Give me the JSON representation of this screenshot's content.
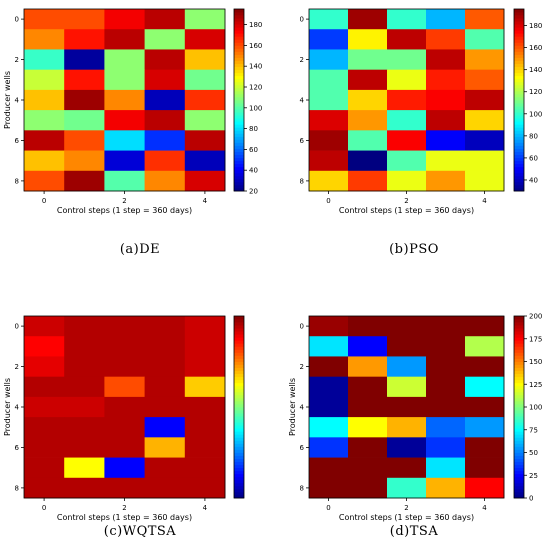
{
  "chart_data": [
    {
      "type": "heatmap",
      "caption": "(a)DE",
      "xlabel": "Control steps (1 step = 360 days)",
      "ylabel": "Producer wells",
      "x_ticks": [
        "0",
        "2",
        "4"
      ],
      "y_ticks": [
        "0",
        "2",
        "4",
        "6",
        "8"
      ],
      "colorbar_ticks": [
        "20",
        "40",
        "60",
        "80",
        "100",
        "120",
        "140",
        "160",
        "180"
      ],
      "zlim": [
        20,
        195
      ],
      "values": [
        [
          160,
          160,
          175,
          185,
          110
        ],
        [
          150,
          170,
          185,
          110,
          180
        ],
        [
          95,
          25,
          110,
          185,
          140
        ],
        [
          120,
          170,
          110,
          180,
          105
        ],
        [
          140,
          190,
          150,
          30,
          165
        ],
        [
          110,
          105,
          175,
          185,
          110
        ],
        [
          185,
          160,
          80,
          50,
          185
        ],
        [
          140,
          150,
          35,
          165,
          30
        ],
        [
          160,
          190,
          100,
          150,
          180
        ]
      ]
    },
    {
      "type": "heatmap",
      "caption": "(b)PSO",
      "xlabel": "Control steps (1 step = 360 days)",
      "ylabel": "",
      "x_ticks": [
        "0",
        "2",
        "4"
      ],
      "y_ticks": [
        "0",
        "2",
        "4",
        "6",
        "8"
      ],
      "colorbar_ticks": [
        "40",
        "60",
        "80",
        "100",
        "120",
        "140",
        "160",
        "180"
      ],
      "zlim": [
        30,
        195
      ],
      "values": [
        [
          100,
          190,
          100,
          80,
          160
        ],
        [
          60,
          135,
          185,
          165,
          105
        ],
        [
          80,
          110,
          110,
          185,
          150
        ],
        [
          105,
          185,
          130,
          170,
          160
        ],
        [
          105,
          140,
          170,
          175,
          185
        ],
        [
          180,
          150,
          100,
          185,
          140
        ],
        [
          190,
          105,
          175,
          50,
          40
        ],
        [
          185,
          30,
          105,
          130,
          130
        ],
        [
          140,
          165,
          130,
          150,
          130
        ]
      ]
    },
    {
      "type": "heatmap",
      "caption": "(c)WQTSA",
      "xlabel": "Control steps (1 step = 360 days)",
      "ylabel": "Producer wells",
      "x_ticks": [
        "0",
        "2",
        "4"
      ],
      "y_ticks": [
        "0",
        "2",
        "4",
        "6",
        "8"
      ],
      "colorbar_ticks": [],
      "zlim": [
        0,
        200
      ],
      "values": [
        [
          185,
          190,
          190,
          190,
          185
        ],
        [
          175,
          190,
          190,
          190,
          185
        ],
        [
          180,
          190,
          190,
          190,
          185
        ],
        [
          190,
          190,
          160,
          190,
          135
        ],
        [
          185,
          185,
          190,
          190,
          190
        ],
        [
          190,
          190,
          190,
          25,
          190
        ],
        [
          190,
          190,
          190,
          140,
          190
        ],
        [
          190,
          125,
          25,
          190,
          190
        ],
        [
          190,
          190,
          190,
          190,
          190
        ]
      ]
    },
    {
      "type": "heatmap",
      "caption": "(d)TSA",
      "xlabel": "Control steps (1 step = 360 days)",
      "ylabel": "Producer wells",
      "x_ticks": [
        "0",
        "2",
        "4"
      ],
      "y_ticks": [
        "0",
        "2",
        "4",
        "6",
        "8"
      ],
      "colorbar_ticks": [
        "0",
        "25",
        "50",
        "75",
        "100",
        "125",
        "150",
        "175",
        "200"
      ],
      "zlim": [
        0,
        200
      ],
      "values": [
        [
          195,
          200,
          200,
          200,
          200
        ],
        [
          70,
          25,
          200,
          200,
          110
        ],
        [
          200,
          145,
          55,
          200,
          200
        ],
        [
          5,
          200,
          115,
          200,
          75
        ],
        [
          5,
          200,
          200,
          200,
          200
        ],
        [
          75,
          125,
          140,
          45,
          55
        ],
        [
          35,
          200,
          5,
          35,
          200
        ],
        [
          200,
          200,
          200,
          70,
          200
        ],
        [
          200,
          200,
          85,
          140,
          175
        ]
      ]
    }
  ]
}
